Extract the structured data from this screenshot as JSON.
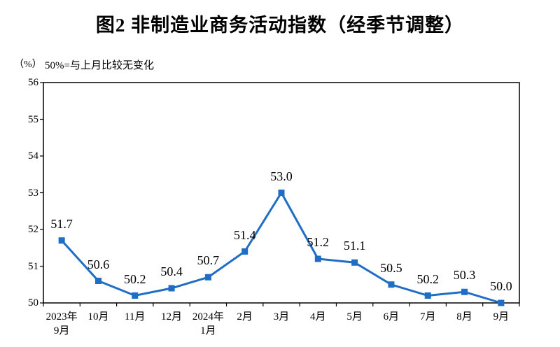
{
  "chart_data": {
    "type": "line",
    "title": "图2 非制造业商务活动指数（经季节调整）",
    "unit_label": "（%）",
    "subtitle": "50%=与上月比较无变化",
    "categories": [
      "2023年\n9月",
      "10月",
      "11月",
      "12月",
      "2024年\n1月",
      "2月",
      "3月",
      "4月",
      "5月",
      "6月",
      "7月",
      "8月",
      "9月"
    ],
    "values": [
      51.7,
      50.6,
      50.2,
      50.4,
      50.7,
      51.4,
      53.0,
      51.2,
      51.1,
      50.5,
      50.2,
      50.3,
      50.0
    ],
    "value_labels": [
      "51.7",
      "50.6",
      "50.2",
      "50.4",
      "50.7",
      "51.4",
      "53.0",
      "51.2",
      "51.1",
      "50.5",
      "50.2",
      "50.3",
      "50.0"
    ],
    "ylim": [
      50,
      56
    ],
    "yticks": [
      50,
      51,
      52,
      53,
      54,
      55,
      56
    ],
    "series_name": "非制造业商务活动指数",
    "line_color": "#1f6dc4",
    "axis_color": "#000000",
    "text_color": "#000000",
    "marker": "square",
    "grid": false,
    "legend": false,
    "data_labels_position": "above"
  }
}
